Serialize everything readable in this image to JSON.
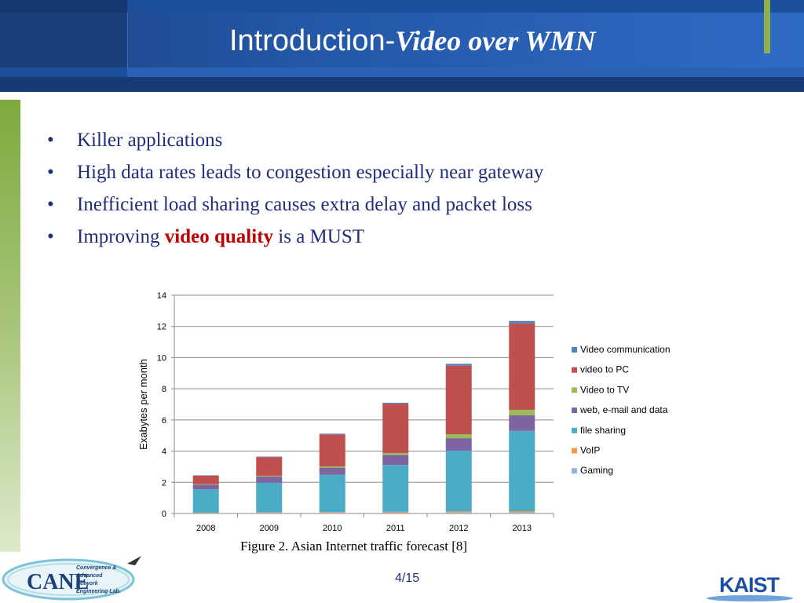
{
  "slide": {
    "title_plain": "Introduction-",
    "title_italic": "Video over WMN",
    "bullets": [
      {
        "text": "Killer applications"
      },
      {
        "text": "High data rates leads to congestion especially near gateway"
      },
      {
        "text": "Inefficient load  sharing causes extra delay and packet loss"
      },
      {
        "pre": "Improving ",
        "highlight": "video quality",
        "post": " is a MUST"
      }
    ],
    "bullet_char": "•",
    "caption": "Figure 2. Asian Internet traffic forecast [8]",
    "page_number": "4/15",
    "logo_left_text": [
      "Convergence &",
      "Advanced",
      "Network",
      "Engineering Lab."
    ],
    "logo_left_mark": "CANE",
    "logo_right_text": "KAIST"
  },
  "colors": {
    "title_text": "#ffffff",
    "bullet_text": "#1f2d7a",
    "highlight": "#c00000",
    "header_blue": "#2458a8",
    "accent_green": "#8fb04b"
  },
  "chart_data": {
    "type": "bar",
    "stacked": true,
    "categories": [
      "2008",
      "2009",
      "2010",
      "2011",
      "2012",
      "2013"
    ],
    "ylabel": "Exabytes per month",
    "xlabel": "",
    "ylim": [
      0,
      14
    ],
    "yticks": [
      0,
      2,
      4,
      6,
      8,
      10,
      12,
      14
    ],
    "grid": true,
    "legend_position": "right",
    "series": [
      {
        "name": "Gaming",
        "color": "#8eb4e3",
        "values": [
          0.02,
          0.03,
          0.04,
          0.05,
          0.06,
          0.07
        ]
      },
      {
        "name": "VoIP",
        "color": "#f79646",
        "values": [
          0.03,
          0.04,
          0.05,
          0.06,
          0.07,
          0.08
        ]
      },
      {
        "name": "file sharing",
        "color": "#4bacc6",
        "values": [
          1.5,
          1.9,
          2.4,
          3.0,
          3.9,
          5.15
        ]
      },
      {
        "name": "web, e-mail and data",
        "color": "#8064a2",
        "values": [
          0.3,
          0.4,
          0.45,
          0.65,
          0.8,
          1.0
        ]
      },
      {
        "name": "Video to TV",
        "color": "#9bbb59",
        "values": [
          0.03,
          0.05,
          0.08,
          0.12,
          0.25,
          0.35
        ]
      },
      {
        "name": "video to PC",
        "color": "#c0504d",
        "values": [
          0.55,
          1.2,
          2.05,
          3.15,
          4.4,
          5.55
        ]
      },
      {
        "name": "Video communication",
        "color": "#4f81bd",
        "values": [
          0.02,
          0.03,
          0.05,
          0.07,
          0.12,
          0.15
        ]
      }
    ]
  }
}
